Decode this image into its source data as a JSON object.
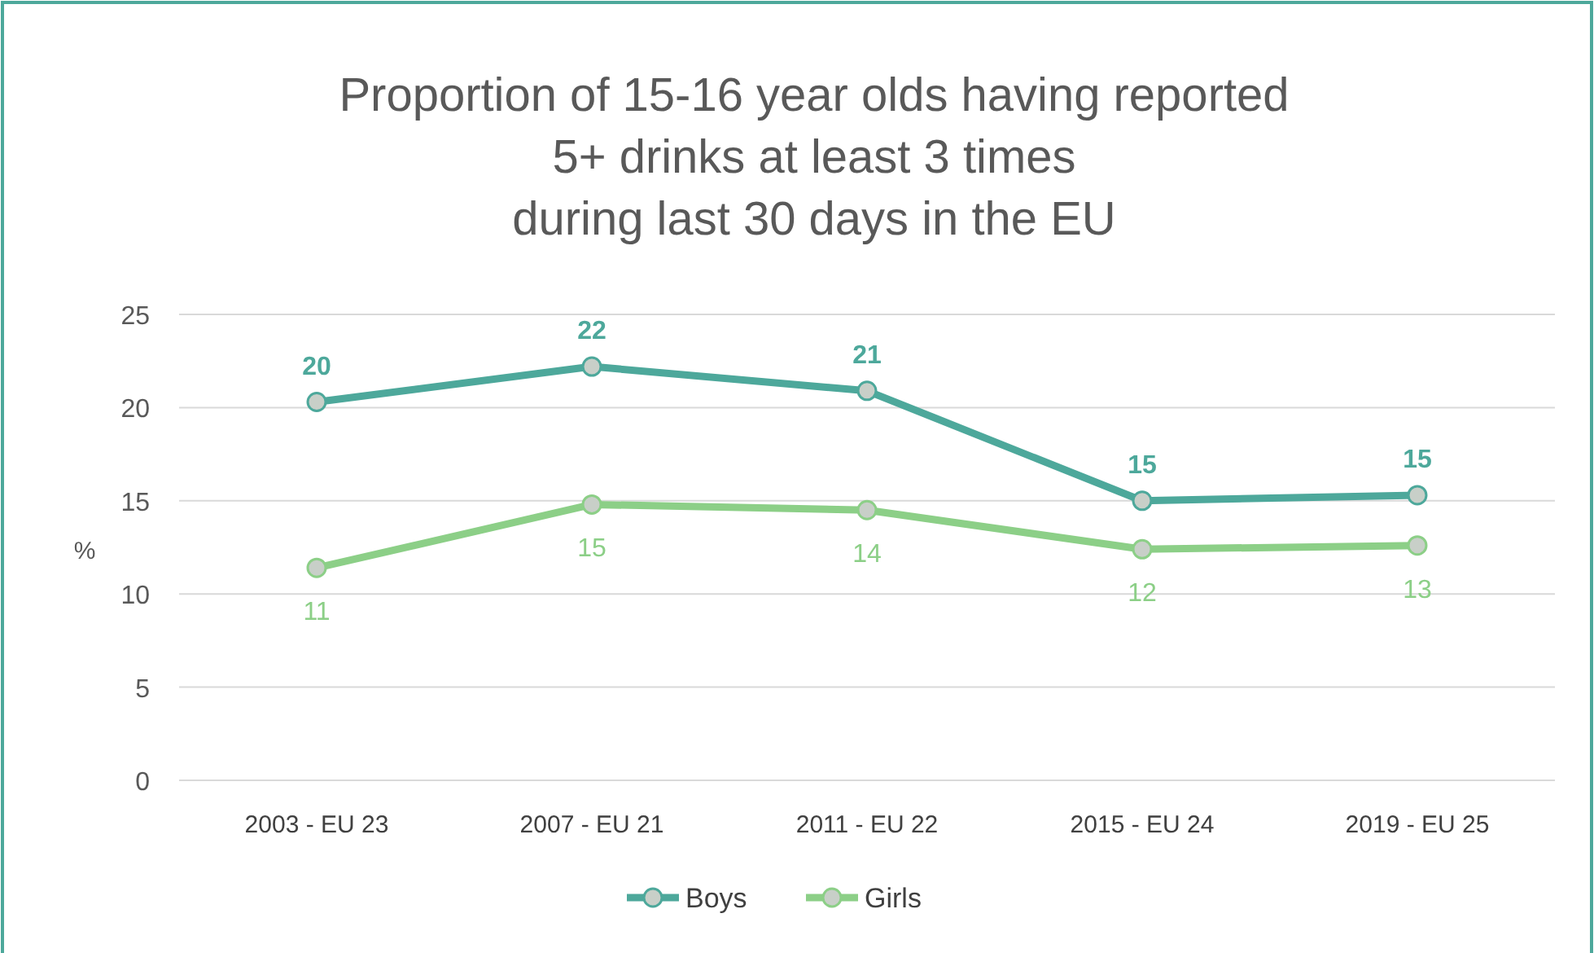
{
  "chart_data": {
    "type": "line",
    "title": "Proportion of 15-16 year olds having reported\n5+ drinks at least 3 times\nduring last 30 days in the EU",
    "ylabel": "%",
    "categories": [
      "2003 - EU 23",
      "2007 - EU 21",
      "2011 - EU 22",
      "2015 - EU 24",
      "2019 - EU 25"
    ],
    "series": [
      {
        "name": "Boys",
        "color": "#4da89b",
        "values": [
          20.3,
          22.2,
          20.9,
          15.0,
          15.3
        ],
        "value_labels": [
          "20",
          "22",
          "21",
          "15",
          "15"
        ]
      },
      {
        "name": "Girls",
        "color": "#8ccf87",
        "values": [
          11.4,
          14.8,
          14.5,
          12.4,
          12.6
        ],
        "value_labels": [
          "11",
          "15",
          "14",
          "12",
          "13"
        ]
      }
    ],
    "ylim": [
      0,
      25
    ],
    "yticks": [
      0,
      5,
      10,
      15,
      20,
      25
    ],
    "grid": "y",
    "legend": "bottom",
    "marker": "circle",
    "line_style": "solid"
  }
}
